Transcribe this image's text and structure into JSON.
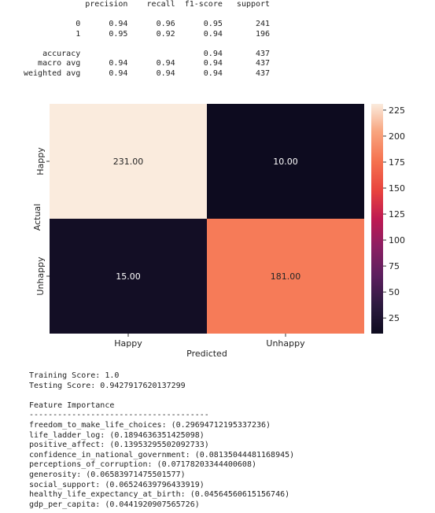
{
  "report": {
    "header": [
      "",
      "precision",
      "recall",
      "f1-score",
      "support"
    ],
    "rows": [
      [
        "0",
        "0.94",
        "0.96",
        "0.95",
        "241"
      ],
      [
        "1",
        "0.95",
        "0.92",
        "0.94",
        "196"
      ],
      [
        "",
        "",
        "",
        "",
        ""
      ],
      [
        "accuracy",
        "",
        "",
        "0.94",
        "437"
      ],
      [
        "macro avg",
        "0.94",
        "0.94",
        "0.94",
        "437"
      ],
      [
        "weighted avg",
        "0.94",
        "0.94",
        "0.94",
        "437"
      ]
    ]
  },
  "chart_data": {
    "type": "heatmap",
    "x_categories": [
      "Happy",
      "Unhappy"
    ],
    "y_categories": [
      "Happy",
      "Unhappy"
    ],
    "values": [
      [
        231,
        10
      ],
      [
        15,
        181
      ]
    ],
    "value_format": "2 decimals",
    "xlabel": "Predicted",
    "ylabel": "Actual",
    "colorbar": {
      "ticks": [
        25,
        50,
        75,
        100,
        125,
        150,
        175,
        200,
        225
      ],
      "vmin": 10,
      "vmax": 231,
      "colormap": "rocket"
    },
    "grid": false
  },
  "results": {
    "training_score": "Training Score: 1.0",
    "testing_score": "Testing Score: 0.9427917620137299",
    "blank": "",
    "fi_title": "Feature Importance",
    "divider": "--------------------------------------",
    "features": [
      "freedom_to_make_life_choices: (0.29694712195337236)",
      "life_ladder_log: (0.1894636351425098)",
      "positive_affect: (0.13953295502092733)",
      "confidence_in_national_government: (0.08135044481168945)",
      "perceptions_of_corruption: (0.07178203344400608)",
      "generosity: (0.06583971475501577)",
      "social_support: (0.06524639796433919)",
      "healthy_life_expectancy_at_birth: (0.04564560615156746)",
      "gdp_per_capita: (0.0441920907565726)"
    ]
  }
}
